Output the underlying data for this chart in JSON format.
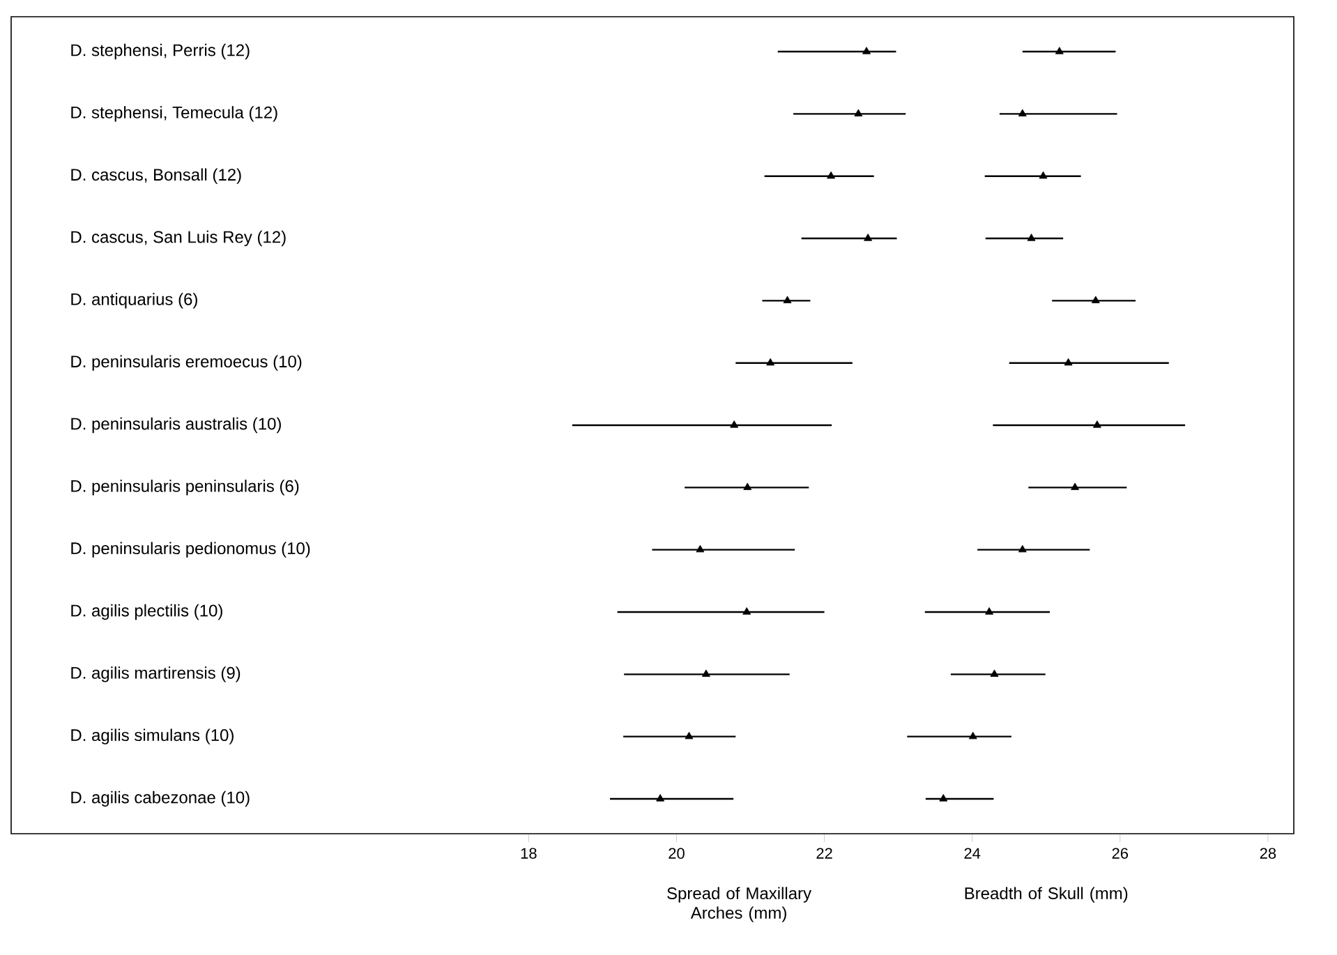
{
  "chart_data": {
    "type": "bar",
    "orientation": "horizontal",
    "marker": "triangle",
    "categories": [
      "D. stephensi, Perris (12)",
      "D. stephensi, Temecula (12)",
      "D. cascus, Bonsall (12)",
      "D. cascus, San Luis Rey (12)",
      "D. antiquarius (6)",
      "D. peninsularis eremoecus (10)",
      "D. peninsularis australis (10)",
      "D. peninsularis peninsularis (6)",
      "D. peninsularis pedionomus (10)",
      "D. agilis plectilis (10)",
      "D. agilis martirensis (9)",
      "D. agilis simulans (10)",
      "D. agilis cabezonae (10)"
    ],
    "annotations": [
      "Spread of Maxillary Arches (mm)",
      "Breadth of Skull (mm)"
    ],
    "xlim": [
      11,
      28.35
    ],
    "xticks": [
      18,
      20,
      22,
      24,
      26,
      28
    ],
    "series": [
      {
        "color": "#000000",
        "base": [
          21.37,
          21.58,
          21.19,
          21.69,
          21.16,
          20.8,
          18.59,
          20.11,
          19.67,
          19.2,
          19.29,
          19.28,
          19.1
        ],
        "values": [
          1.6,
          1.52,
          1.48,
          1.29,
          0.65,
          1.58,
          3.51,
          1.68,
          1.93,
          2.8,
          2.24,
          1.52,
          1.67
        ]
      },
      {
        "color": "#000000",
        "base": [
          24.68,
          24.37,
          24.17,
          24.18,
          25.08,
          24.5,
          24.28,
          24.76,
          24.07,
          23.36,
          23.71,
          23.12,
          23.37
        ],
        "values": [
          1.26,
          1.59,
          1.3,
          1.05,
          1.13,
          2.16,
          2.6,
          1.33,
          1.52,
          1.69,
          1.28,
          1.41,
          0.92
        ]
      },
      {
        "type": "scatter",
        "color": "#000000",
        "values": [
          22.57,
          22.46,
          22.09,
          22.59,
          21.5,
          21.27,
          20.78,
          20.96,
          20.32,
          20.95,
          20.4,
          20.17,
          19.78
        ]
      },
      {
        "type": "scatter",
        "color": "#000000",
        "values": [
          25.18,
          24.68,
          24.96,
          24.8,
          25.67,
          25.3,
          25.69,
          25.39,
          24.68,
          24.23,
          24.3,
          24.01,
          23.61
        ]
      }
    ]
  }
}
